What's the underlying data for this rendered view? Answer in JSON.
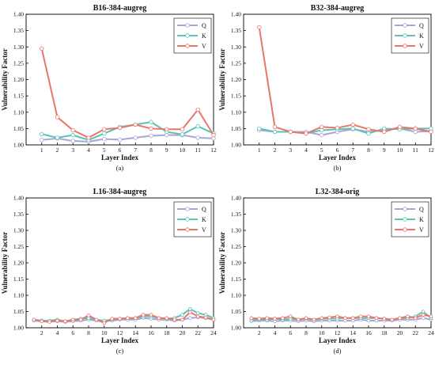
{
  "colors": {
    "Q": "#a8a6d8",
    "K": "#5cc2b6",
    "V": "#e8776a",
    "axis": "#000000"
  },
  "chart_data": [
    {
      "type": "line",
      "title": "B16-384-augreg",
      "caption": "(a)",
      "xlabel": "Layer Index",
      "ylabel": "Vulnerability Factor",
      "xlim": [
        0,
        12
      ],
      "xticks": [
        1,
        2,
        3,
        4,
        5,
        6,
        7,
        8,
        9,
        10,
        11,
        12
      ],
      "ylim": [
        1.0,
        1.4
      ],
      "yticks": [
        "1.00",
        "1.05",
        "1.10",
        "1.15",
        "1.20",
        "1.25",
        "1.30",
        "1.35",
        "1.40"
      ],
      "legend": "top-right",
      "x": [
        1,
        2,
        3,
        4,
        5,
        6,
        7,
        8,
        9,
        10,
        11,
        12
      ],
      "series": [
        {
          "name": "Q",
          "values": [
            1.015,
            1.02,
            1.012,
            1.01,
            1.018,
            1.016,
            1.022,
            1.028,
            1.03,
            1.03,
            1.022,
            1.02
          ]
        },
        {
          "name": "K",
          "values": [
            1.033,
            1.022,
            1.03,
            1.015,
            1.035,
            1.055,
            1.062,
            1.07,
            1.04,
            1.032,
            1.057,
            1.035
          ]
        },
        {
          "name": "V",
          "values": [
            1.295,
            1.085,
            1.045,
            1.022,
            1.048,
            1.052,
            1.062,
            1.05,
            1.048,
            1.048,
            1.108,
            1.03
          ]
        }
      ]
    },
    {
      "type": "line",
      "title": "B32-384-augreg",
      "caption": "(b)",
      "xlabel": "Layer Index",
      "ylabel": "Vulnerability Factor",
      "xlim": [
        0,
        12
      ],
      "xticks": [
        1,
        2,
        3,
        4,
        5,
        6,
        7,
        8,
        9,
        10,
        11,
        12
      ],
      "ylim": [
        1.0,
        1.4
      ],
      "yticks": [
        "1.00",
        "1.05",
        "1.10",
        "1.15",
        "1.20",
        "1.25",
        "1.30",
        "1.35",
        "1.40"
      ],
      "legend": "top-right",
      "x": [
        1,
        2,
        3,
        4,
        5,
        6,
        7,
        8,
        9,
        10,
        11,
        12
      ],
      "series": [
        {
          "name": "Q",
          "values": [
            1.045,
            1.04,
            1.04,
            1.04,
            1.03,
            1.04,
            1.048,
            1.04,
            1.045,
            1.05,
            1.04,
            1.042
          ]
        },
        {
          "name": "K",
          "values": [
            1.05,
            1.04,
            1.04,
            1.035,
            1.045,
            1.048,
            1.05,
            1.035,
            1.05,
            1.048,
            1.05,
            1.05
          ]
        },
        {
          "name": "V",
          "values": [
            1.36,
            1.055,
            1.04,
            1.035,
            1.055,
            1.052,
            1.062,
            1.048,
            1.04,
            1.055,
            1.05,
            1.04
          ]
        }
      ]
    },
    {
      "type": "line",
      "title": "L16-384-augreg",
      "caption": "(c)",
      "xlabel": "Layer Index",
      "ylabel": "Vulnerability Factor",
      "xlim": [
        0,
        24
      ],
      "xticks": [
        2,
        4,
        6,
        8,
        10,
        12,
        14,
        16,
        18,
        20,
        22,
        24
      ],
      "ylim": [
        1.0,
        1.4
      ],
      "yticks": [
        "1.00",
        "1.05",
        "1.10",
        "1.15",
        "1.20",
        "1.25",
        "1.30",
        "1.35",
        "1.40"
      ],
      "legend": "top-right",
      "x": [
        1,
        2,
        3,
        4,
        5,
        6,
        7,
        8,
        9,
        10,
        11,
        12,
        13,
        14,
        15,
        16,
        17,
        18,
        19,
        20,
        21,
        22,
        23,
        24
      ],
      "series": [
        {
          "name": "Q",
          "values": [
            1.022,
            1.02,
            1.02,
            1.02,
            1.018,
            1.02,
            1.022,
            1.025,
            1.022,
            1.02,
            1.022,
            1.025,
            1.025,
            1.025,
            1.03,
            1.028,
            1.025,
            1.025,
            1.022,
            1.025,
            1.03,
            1.032,
            1.03,
            1.025
          ]
        },
        {
          "name": "K",
          "values": [
            1.025,
            1.022,
            1.022,
            1.025,
            1.02,
            1.025,
            1.028,
            1.03,
            1.025,
            1.022,
            1.025,
            1.028,
            1.03,
            1.03,
            1.035,
            1.035,
            1.03,
            1.028,
            1.03,
            1.04,
            1.058,
            1.045,
            1.04,
            1.03
          ]
        },
        {
          "name": "V",
          "values": [
            1.025,
            1.02,
            1.018,
            1.022,
            1.02,
            1.025,
            1.025,
            1.038,
            1.025,
            1.015,
            1.028,
            1.028,
            1.03,
            1.03,
            1.04,
            1.04,
            1.03,
            1.03,
            1.025,
            1.025,
            1.048,
            1.035,
            1.032,
            1.025
          ]
        }
      ]
    },
    {
      "type": "line",
      "title": "L32-384-orig",
      "caption": "(d)",
      "xlabel": "Layer Index",
      "ylabel": "Vulnerability Factor",
      "xlim": [
        0,
        24
      ],
      "xticks": [
        2,
        4,
        6,
        8,
        10,
        12,
        14,
        16,
        18,
        20,
        22,
        24
      ],
      "ylim": [
        1.0,
        1.4
      ],
      "yticks": [
        "1.00",
        "1.05",
        "1.10",
        "1.15",
        "1.20",
        "1.25",
        "1.30",
        "1.35",
        "1.40"
      ],
      "legend": "top-right",
      "x": [
        1,
        2,
        3,
        4,
        5,
        6,
        7,
        8,
        9,
        10,
        11,
        12,
        13,
        14,
        15,
        16,
        17,
        18,
        19,
        20,
        21,
        22,
        23,
        24
      ],
      "series": [
        {
          "name": "Q",
          "values": [
            1.02,
            1.022,
            1.022,
            1.02,
            1.022,
            1.022,
            1.02,
            1.022,
            1.02,
            1.022,
            1.022,
            1.022,
            1.022,
            1.022,
            1.025,
            1.022,
            1.022,
            1.022,
            1.022,
            1.025,
            1.025,
            1.025,
            1.03,
            1.025
          ]
        },
        {
          "name": "K",
          "values": [
            1.025,
            1.025,
            1.025,
            1.028,
            1.025,
            1.028,
            1.025,
            1.028,
            1.025,
            1.028,
            1.028,
            1.028,
            1.03,
            1.03,
            1.03,
            1.03,
            1.03,
            1.028,
            1.025,
            1.03,
            1.03,
            1.035,
            1.05,
            1.03
          ]
        },
        {
          "name": "V",
          "values": [
            1.03,
            1.028,
            1.03,
            1.028,
            1.03,
            1.035,
            1.025,
            1.03,
            1.025,
            1.03,
            1.032,
            1.035,
            1.03,
            1.03,
            1.035,
            1.035,
            1.03,
            1.028,
            1.025,
            1.03,
            1.035,
            1.03,
            1.04,
            1.035
          ]
        }
      ]
    }
  ]
}
